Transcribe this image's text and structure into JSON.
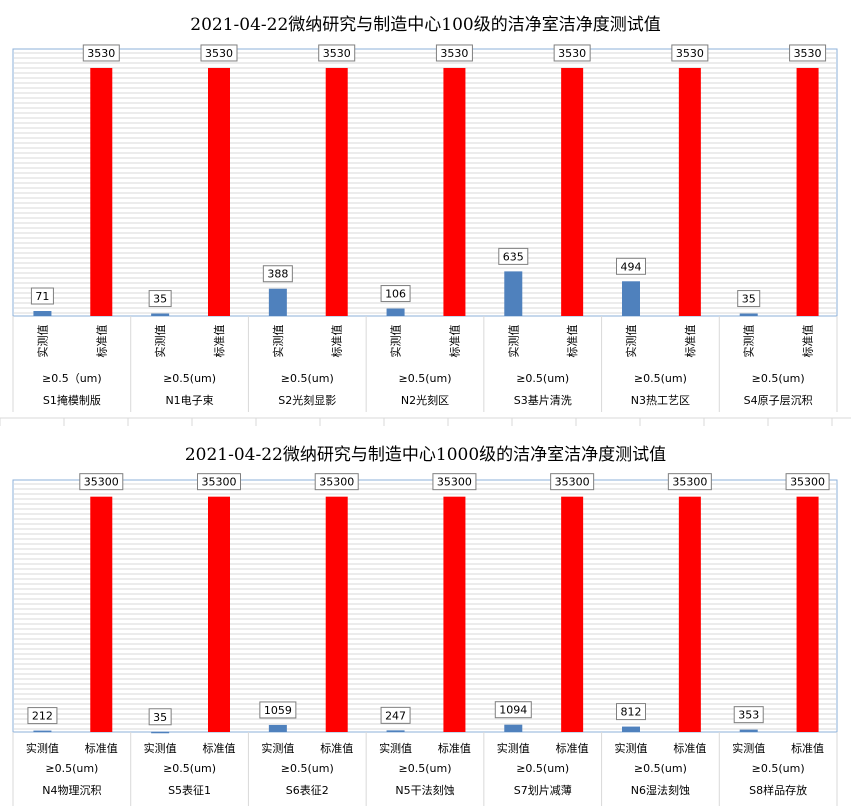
{
  "chart_data": [
    {
      "type": "bar",
      "title": "2021-04-22微纳研究与制造中心100级的洁净室洁净度测试值",
      "series": [
        {
          "name": "实测值",
          "values": [
            71,
            35,
            388,
            106,
            635,
            494,
            35
          ]
        },
        {
          "name": "标准值",
          "values": [
            3530,
            3530,
            3530,
            3530,
            3530,
            3530,
            3530
          ]
        }
      ],
      "groups": [
        {
          "size": "≥0.5（um)",
          "area": "S1掩模制版"
        },
        {
          "size": "≥0.5(um)",
          "area": "N1电子束"
        },
        {
          "size": "≥0.5(um)",
          "area": "S2光刻显影"
        },
        {
          "size": "≥0.5(um)",
          "area": "N2光刻区"
        },
        {
          "size": "≥0.5(um)",
          "area": "S3基片清洗"
        },
        {
          "size": "≥0.5(um)",
          "area": "N3热工艺区"
        },
        {
          "size": "≥0.5(um)",
          "area": "S4原子层沉积"
        }
      ],
      "ylim": [
        0,
        3800
      ],
      "grid": true,
      "label_orientation": "vertical",
      "colors": {
        "实测值": "#4f81bd",
        "标准值": "#ff0000"
      }
    },
    {
      "type": "bar",
      "title": "2021-04-22微纳研究与制造中心1000级的洁净室洁净度测试值",
      "series": [
        {
          "name": "实测值",
          "values": [
            212,
            35,
            1059,
            247,
            1094,
            812,
            353
          ]
        },
        {
          "name": "标准值",
          "values": [
            35300,
            35300,
            35300,
            35300,
            35300,
            35300,
            35300
          ]
        }
      ],
      "groups": [
        {
          "size": "≥0.5(um)",
          "area": "N4物理沉积"
        },
        {
          "size": "≥0.5(um)",
          "area": "S5表征1"
        },
        {
          "size": "≥0.5(um)",
          "area": "S6表征2"
        },
        {
          "size": "≥0.5(um)",
          "area": "N5干法刻蚀"
        },
        {
          "size": "≥0.5(um)",
          "area": "S7划片减薄"
        },
        {
          "size": "≥0.5(um)",
          "area": "N6湿法刻蚀"
        },
        {
          "size": "≥0.5(um)",
          "area": "S8样品存放"
        }
      ],
      "ylim": [
        0,
        37800
      ],
      "grid": true,
      "label_orientation": "horizontal",
      "colors": {
        "实测值": "#4f81bd",
        "标准值": "#ff0000"
      }
    }
  ]
}
